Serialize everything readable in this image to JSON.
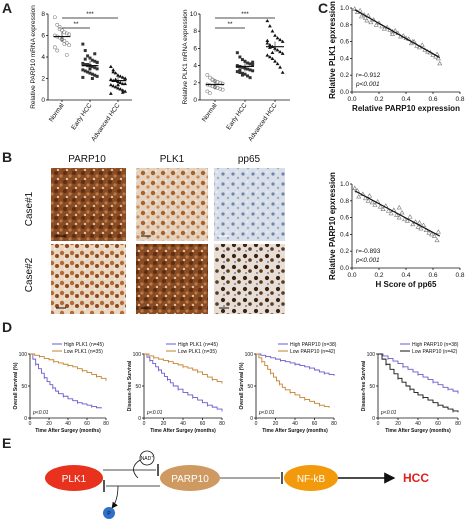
{
  "panels": {
    "a": "A",
    "b": "B",
    "c": "C",
    "d": "D",
    "e": "E"
  },
  "colors": {
    "plk1_node": "#e8321e",
    "parp10_node": "#cf9a61",
    "nfkb_node": "#f29a0c",
    "p_node": "#2e6fc9",
    "km_blue": "#6a5acd",
    "km_orange": "#c4822f",
    "hcc_text": "#e0201b"
  },
  "chart_data": [
    {
      "type": "scatter",
      "id": "A-left",
      "ylabel": "Relative PARP10 mRNA expression",
      "categories": [
        "Normal",
        "Early HCC",
        "Advanced HCC"
      ],
      "yticks": [
        0,
        2,
        4,
        6,
        8
      ],
      "ylim": [
        0,
        8
      ],
      "means": [
        5.9,
        3.2,
        1.8
      ],
      "annotations": [
        "**",
        "***"
      ],
      "points": [
        [
          7.7,
          7.0,
          6.8,
          6.5,
          6.3,
          6.2,
          6.1,
          6.0,
          5.9,
          5.8,
          5.6,
          5.5,
          5.3,
          5.1,
          4.9,
          4.6,
          6.6,
          5.7,
          5.2,
          4.2
        ],
        [
          5.2,
          4.6,
          4.1,
          3.9,
          3.7,
          3.6,
          3.5,
          3.4,
          3.3,
          3.2,
          3.2,
          3.1,
          3.0,
          2.9,
          2.8,
          2.7,
          2.6,
          2.5,
          2.4,
          2.3,
          2.2,
          2.1,
          3.8,
          3.3,
          2.9,
          2.0,
          4.3,
          3.5
        ],
        [
          3.1,
          2.8,
          2.5,
          2.3,
          2.2,
          2.1,
          2.0,
          1.9,
          1.8,
          1.8,
          1.7,
          1.6,
          1.5,
          1.5,
          1.4,
          1.3,
          1.2,
          1.1,
          1.0,
          0.9,
          0.8,
          0.6,
          2.6,
          1.9,
          1.4,
          1.0,
          0.7,
          2.0
        ]
      ]
    },
    {
      "type": "scatter",
      "id": "A-right",
      "ylabel": "Relative PLK1 mRNA expression",
      "categories": [
        "Normal",
        "Early HCC",
        "Advanced HCC"
      ],
      "yticks": [
        0,
        2,
        4,
        6,
        8,
        10
      ],
      "ylim": [
        0,
        10
      ],
      "means": [
        1.8,
        3.9,
        6.2
      ],
      "annotations": [
        "**",
        "***"
      ],
      "points": [
        [
          2.9,
          2.6,
          2.4,
          2.2,
          2.1,
          2.0,
          1.9,
          1.8,
          1.7,
          1.6,
          1.5,
          1.4,
          1.3,
          1.2,
          1.0,
          0.8,
          2.3,
          1.5
        ],
        [
          5.5,
          5.0,
          4.7,
          4.5,
          4.3,
          4.2,
          4.1,
          4.0,
          3.9,
          3.8,
          3.7,
          3.6,
          3.5,
          3.4,
          3.3,
          3.2,
          3.1,
          3.0,
          2.8,
          2.6,
          4.4,
          3.9,
          3.5,
          2.9
        ],
        [
          9.2,
          8.6,
          8.0,
          7.5,
          7.2,
          7.0,
          6.8,
          6.6,
          6.4,
          6.2,
          6.0,
          5.8,
          5.6,
          5.4,
          5.2,
          5.0,
          4.8,
          4.5,
          4.2,
          3.8,
          3.2,
          6.9,
          6.1,
          5.5
        ]
      ]
    },
    {
      "type": "scatter",
      "id": "C-top",
      "xlabel": "Relative PARP10 expression",
      "ylabel": "Relative PLK1 epxression",
      "xticks": [
        0.0,
        0.2,
        0.4,
        0.6,
        0.8
      ],
      "yticks": [
        0.0,
        0.2,
        0.4,
        0.6,
        0.8,
        1.0
      ],
      "xlim": [
        0,
        0.8
      ],
      "ylim": [
        0,
        1.0
      ],
      "stat_r": "r=-0.912",
      "stat_p": "p<0.001",
      "fit": [
        [
          0.02,
          0.98
        ],
        [
          0.65,
          0.41
        ]
      ],
      "x": [
        0.02,
        0.04,
        0.06,
        0.07,
        0.09,
        0.11,
        0.12,
        0.14,
        0.16,
        0.18,
        0.2,
        0.22,
        0.24,
        0.26,
        0.28,
        0.3,
        0.32,
        0.34,
        0.36,
        0.38,
        0.4,
        0.42,
        0.44,
        0.46,
        0.48,
        0.5,
        0.52,
        0.54,
        0.56,
        0.58,
        0.6,
        0.62,
        0.64,
        0.65,
        0.63,
        0.1,
        0.3,
        0.45
      ],
      "y": [
        0.99,
        0.95,
        0.97,
        0.9,
        0.92,
        0.85,
        0.91,
        0.83,
        0.86,
        0.8,
        0.82,
        0.78,
        0.75,
        0.77,
        0.74,
        0.72,
        0.73,
        0.7,
        0.66,
        0.67,
        0.64,
        0.63,
        0.58,
        0.6,
        0.55,
        0.53,
        0.56,
        0.5,
        0.48,
        0.47,
        0.44,
        0.42,
        0.4,
        0.34,
        0.45,
        0.88,
        0.69,
        0.6
      ]
    },
    {
      "type": "scatter",
      "id": "C-bottom",
      "xlabel": "H Score of pp65",
      "ylabel": "Relative PARP10 epxression",
      "xticks": [
        0.0,
        0.2,
        0.4,
        0.6,
        0.8
      ],
      "yticks": [
        0.0,
        0.2,
        0.4,
        0.6,
        0.8,
        1.0
      ],
      "xlim": [
        0,
        0.8
      ],
      "ylim": [
        0,
        1.0
      ],
      "stat_r": "r=-0.893",
      "stat_p": "p<0.001",
      "fit": [
        [
          0.02,
          0.92
        ],
        [
          0.65,
          0.38
        ]
      ],
      "x": [
        0.02,
        0.04,
        0.05,
        0.08,
        0.1,
        0.12,
        0.13,
        0.15,
        0.17,
        0.19,
        0.21,
        0.23,
        0.25,
        0.27,
        0.29,
        0.31,
        0.33,
        0.35,
        0.37,
        0.39,
        0.41,
        0.43,
        0.45,
        0.47,
        0.49,
        0.51,
        0.53,
        0.55,
        0.57,
        0.59,
        0.61,
        0.63,
        0.64,
        0.35,
        0.5
      ],
      "y": [
        0.95,
        0.92,
        0.85,
        0.88,
        0.83,
        0.8,
        0.86,
        0.78,
        0.75,
        0.79,
        0.73,
        0.7,
        0.74,
        0.68,
        0.65,
        0.69,
        0.63,
        0.6,
        0.66,
        0.58,
        0.56,
        0.61,
        0.52,
        0.55,
        0.49,
        0.47,
        0.51,
        0.45,
        0.42,
        0.4,
        0.38,
        0.33,
        0.43,
        0.72,
        0.54
      ]
    },
    {
      "type": "line",
      "id": "D-1",
      "ylabel": "Overall Survival (%)",
      "xlabel": "Time After Surgey (months)",
      "legend": [
        "High PLK1 (n=45)",
        "Low PLK1 (n=35)"
      ],
      "xticks": [
        0,
        20,
        40,
        60,
        80
      ],
      "yticks": [
        0,
        50,
        100
      ],
      "pvalue": "p<0.01",
      "series": [
        {
          "name": "High PLK1 (n=45)",
          "color": "blue",
          "x": [
            0,
            3,
            6,
            9,
            12,
            15,
            18,
            21,
            24,
            27,
            30,
            35,
            40,
            45,
            50,
            55,
            60,
            65,
            70,
            75
          ],
          "y": [
            100,
            92,
            84,
            77,
            70,
            63,
            57,
            52,
            47,
            42,
            38,
            34,
            30,
            27,
            24,
            22,
            20,
            18,
            16,
            15
          ]
        },
        {
          "name": "Low PLK1 (n=35)",
          "color": "orange",
          "x": [
            0,
            5,
            10,
            15,
            20,
            25,
            30,
            35,
            40,
            45,
            50,
            55,
            60,
            65,
            70,
            75,
            80
          ],
          "y": [
            100,
            98,
            96,
            93,
            91,
            88,
            86,
            84,
            82,
            80,
            77,
            74,
            71,
            68,
            65,
            62,
            58
          ]
        }
      ]
    },
    {
      "type": "line",
      "id": "D-2",
      "ylabel": "Disease-free Survival",
      "xlabel": "Time After Surgey (months)",
      "legend": [
        "High PLK1 (n=45)",
        "Low PLK1 (n=35)"
      ],
      "xticks": [
        0,
        20,
        40,
        60,
        80
      ],
      "yticks": [
        0,
        50,
        100
      ],
      "pvalue": "p<0.01",
      "series": [
        {
          "name": "High PLK1 (n=45)",
          "color": "blue",
          "x": [
            0,
            3,
            6,
            9,
            12,
            15,
            18,
            21,
            24,
            27,
            30,
            35,
            40,
            45,
            50,
            55,
            60,
            65,
            70,
            75,
            80
          ],
          "y": [
            100,
            95,
            90,
            85,
            80,
            75,
            70,
            65,
            60,
            55,
            50,
            45,
            40,
            36,
            32,
            28,
            24,
            20,
            17,
            14,
            12
          ]
        },
        {
          "name": "Low PLK1 (n=35)",
          "color": "orange",
          "x": [
            0,
            5,
            10,
            15,
            20,
            25,
            30,
            35,
            40,
            45,
            50,
            55,
            60,
            65,
            70,
            75,
            80
          ],
          "y": [
            100,
            97,
            94,
            92,
            90,
            88,
            85,
            83,
            80,
            78,
            75,
            72,
            68,
            64,
            60,
            57,
            54
          ]
        }
      ]
    },
    {
      "type": "line",
      "id": "D-3",
      "ylabel": "Overall Survival (%)",
      "xlabel": "Time After Surgey (months)",
      "legend": [
        "High PARP10 (n=38)",
        "Low PARP10 (n=42)"
      ],
      "xticks": [
        0,
        20,
        40,
        60,
        80
      ],
      "yticks": [
        0,
        50,
        100
      ],
      "pvalue": "p<0.01",
      "series": [
        {
          "name": "High PARP10 (n=38)",
          "color": "blue",
          "x": [
            0,
            5,
            10,
            15,
            20,
            25,
            30,
            35,
            40,
            45,
            50,
            55,
            60,
            65,
            70,
            75,
            80
          ],
          "y": [
            100,
            98,
            96,
            94,
            92,
            90,
            88,
            86,
            84,
            82,
            80,
            78,
            75,
            72,
            70,
            68,
            66
          ]
        },
        {
          "name": "Low PARP10 (n=42)",
          "color": "orange",
          "x": [
            0,
            3,
            6,
            9,
            12,
            15,
            18,
            21,
            24,
            27,
            30,
            35,
            40,
            45,
            50,
            55,
            60,
            65,
            70,
            75
          ],
          "y": [
            100,
            94,
            88,
            82,
            76,
            70,
            64,
            58,
            53,
            48,
            44,
            40,
            36,
            32,
            29,
            26,
            23,
            20,
            18,
            16
          ]
        }
      ]
    },
    {
      "type": "line",
      "id": "D-4",
      "ylabel": "Disease-free Survival",
      "xlabel": "Time After Surgey (months)",
      "legend": [
        "High PARP10 (n=38)",
        "Low PARP10 (n=42)"
      ],
      "xticks": [
        0,
        20,
        40,
        60,
        80
      ],
      "yticks": [
        0,
        50,
        100
      ],
      "pvalue": "p<0.01",
      "series": [
        {
          "name": "High PARP10 (n=38)",
          "color": "blue",
          "x": [
            0,
            5,
            10,
            15,
            20,
            25,
            30,
            35,
            40,
            45,
            50,
            55,
            60,
            65,
            70,
            75,
            80
          ],
          "y": [
            100,
            97,
            93,
            89,
            85,
            80,
            76,
            72,
            68,
            64,
            60,
            56,
            52,
            48,
            45,
            42,
            38
          ]
        },
        {
          "name": "Low PARP10 (n=42)",
          "color": "black",
          "x": [
            0,
            4,
            8,
            12,
            16,
            20,
            24,
            28,
            32,
            36,
            40,
            45,
            50,
            55,
            60,
            65,
            70,
            75,
            80
          ],
          "y": [
            100,
            92,
            84,
            76,
            69,
            62,
            56,
            50,
            45,
            40,
            36,
            32,
            28,
            24,
            20,
            17,
            14,
            11,
            9
          ]
        }
      ]
    }
  ],
  "panel_b": {
    "columns": [
      "PARP10",
      "PLK1",
      "pp65"
    ],
    "rows": [
      "Case#1",
      "Case#2"
    ]
  },
  "panel_e": {
    "nodes": [
      "PLK1",
      "PARP10",
      "NF-kB",
      "HCC"
    ],
    "nad_label": "NAD",
    "nad_sup": "+",
    "p_label": "P"
  }
}
